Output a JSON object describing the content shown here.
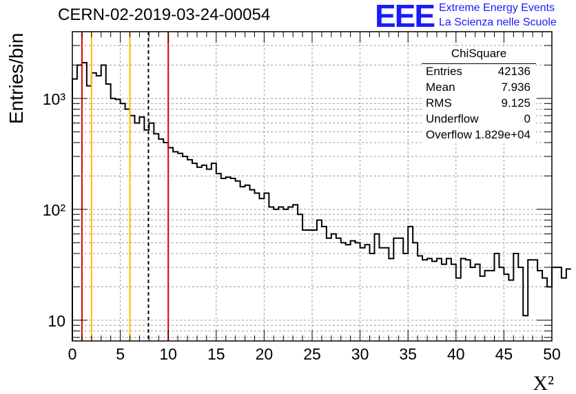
{
  "header": {
    "title": "CERN-02-2019-03-24-00054",
    "logo_text": "EEE",
    "logo_line1": "Extreme Energy Events",
    "logo_line2": "La Scienza nelle Scuole",
    "logo_color": "#1a1aff"
  },
  "stats": {
    "name": "ChiSquare",
    "rows": [
      {
        "label": "Entries",
        "value": "42136"
      },
      {
        "label": "Mean",
        "value": "7.936"
      },
      {
        "label": "RMS",
        "value": "9.125"
      },
      {
        "label": "Underflow",
        "value": "0"
      },
      {
        "label": "Overflow",
        "value": "1.829e+04"
      }
    ]
  },
  "chart_data": {
    "type": "histogram",
    "xlabel": "X²",
    "ylabel": "Entries/bin",
    "xlim": [
      0,
      50
    ],
    "ylim": [
      6.5,
      4000
    ],
    "y_scale": "log",
    "grid": true,
    "x_ticks": [
      "0",
      "5",
      "10",
      "15",
      "20",
      "25",
      "30",
      "35",
      "40",
      "45",
      "50"
    ],
    "y_ticks": [
      {
        "value": 10,
        "label": "10"
      },
      {
        "value": 100,
        "label": "10²"
      },
      {
        "value": 1000,
        "label": "10³"
      }
    ],
    "bin_width": 0.5,
    "x_start": 0,
    "values": [
      1500,
      2000,
      2100,
      1300,
      1700,
      1600,
      2000,
      1350,
      1000,
      980,
      900,
      800,
      700,
      600,
      680,
      520,
      600,
      480,
      430,
      400,
      360,
      330,
      320,
      300,
      280,
      260,
      240,
      250,
      230,
      260,
      210,
      190,
      195,
      190,
      180,
      160,
      165,
      150,
      140,
      125,
      140,
      105,
      100,
      105,
      100,
      105,
      110,
      90,
      65,
      65,
      65,
      80,
      70,
      55,
      60,
      55,
      50,
      48,
      52,
      50,
      45,
      48,
      40,
      60,
      45,
      45,
      36,
      55,
      55,
      40,
      70,
      50,
      38,
      35,
      36,
      34,
      36,
      32,
      36,
      32,
      24,
      36,
      35,
      30,
      32,
      25,
      28,
      28,
      40,
      30,
      26,
      23,
      40,
      30,
      11,
      35,
      35,
      28,
      24,
      20,
      30,
      30,
      24,
      29
    ],
    "vertical_lines": [
      {
        "x": 1.0,
        "color": "#dd0000",
        "style": "solid"
      },
      {
        "x": 2.0,
        "color": "#ffbb00",
        "style": "solid"
      },
      {
        "x": 6.0,
        "color": "#ffbb00",
        "style": "solid"
      },
      {
        "x": 7.936,
        "color": "#000000",
        "style": "dashed"
      },
      {
        "x": 10.0,
        "color": "#dd0000",
        "style": "solid"
      }
    ]
  }
}
